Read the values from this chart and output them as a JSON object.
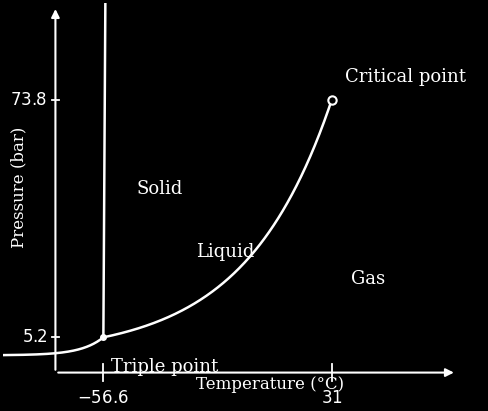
{
  "background_color": "#000000",
  "foreground_color": "#ffffff",
  "xlabel": "Temperature (°C)",
  "ylabel": "Pressure (bar)",
  "triple_point": [
    -56.6,
    5.2
  ],
  "critical_point": [
    31.0,
    73.8
  ],
  "x_ticks": [
    -56.6,
    31.0
  ],
  "y_ticks": [
    5.2,
    73.8
  ],
  "label_solid": "Solid",
  "label_liquid": "Liquid",
  "label_gas": "Gas",
  "label_triple": "Triple point",
  "label_critical": "Critical point",
  "line_color": "#ffffff",
  "font_size_labels": 13,
  "font_size_axis": 12,
  "font_size_ticks": 12,
  "xlim": [
    -95,
    80
  ],
  "ylim": [
    -12,
    102
  ],
  "ax_origin_x": -75,
  "ax_origin_y": -5
}
